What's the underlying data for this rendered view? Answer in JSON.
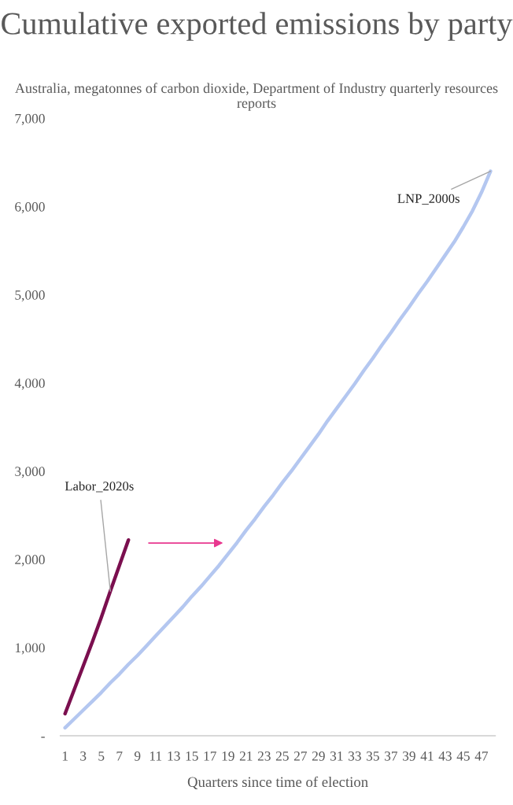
{
  "chart_data": {
    "type": "line",
    "title": "Cumulative exported emissions by party",
    "subtitle": "Australia, megatonnes of carbon dioxide, Department of Industry quarterly resources reports",
    "xlabel": "Quarters since time of election",
    "categories": [
      "1",
      null,
      "3",
      null,
      "5",
      null,
      "7",
      null,
      "9",
      null,
      "11",
      null,
      "13",
      null,
      "15",
      null,
      "17",
      null,
      "19",
      null,
      "21",
      null,
      "23",
      null,
      "25",
      null,
      "27",
      null,
      "29",
      null,
      "31",
      null,
      "33",
      null,
      "35",
      null,
      "37",
      null,
      "39",
      null,
      "41",
      null,
      "43",
      null,
      "45",
      null,
      "47",
      null
    ],
    "series": [
      {
        "name": "Labor_2020s",
        "color": "#7b0f4f",
        "values": [
          250,
          520,
          790,
          1060,
          1340,
          1640,
          1930,
          2220,
          null,
          null,
          null,
          null,
          null,
          null,
          null,
          null,
          null,
          null,
          null,
          null,
          null,
          null,
          null,
          null,
          null,
          null,
          null,
          null,
          null,
          null,
          null,
          null,
          null,
          null,
          null,
          null,
          null,
          null,
          null,
          null,
          null,
          null,
          null,
          null,
          null,
          null,
          null,
          null
        ]
      },
      {
        "name": "LNP_2000s",
        "color": "#b4c7f0",
        "values": [
          90,
          190,
          290,
          390,
          490,
          600,
          700,
          810,
          910,
          1020,
          1130,
          1240,
          1350,
          1460,
          1580,
          1690,
          1810,
          1930,
          2060,
          2190,
          2330,
          2460,
          2600,
          2730,
          2870,
          3000,
          3140,
          3280,
          3420,
          3570,
          3710,
          3850,
          3990,
          4140,
          4280,
          4430,
          4570,
          4720,
          4860,
          5010,
          5150,
          5300,
          5450,
          5600,
          5770,
          5950,
          6160,
          6400
        ]
      }
    ],
    "ylim": [
      0,
      7000
    ],
    "yticks": [
      {
        "value": 0,
        "label": "-"
      },
      {
        "value": 1000,
        "label": "1,000"
      },
      {
        "value": 2000,
        "label": "2,000"
      },
      {
        "value": 3000,
        "label": "3,000"
      },
      {
        "value": 4000,
        "label": "4,000"
      },
      {
        "value": 5000,
        "label": "5,000"
      },
      {
        "value": 6000,
        "label": "6,000"
      },
      {
        "value": 7000,
        "label": "7,000"
      }
    ],
    "grid": false,
    "legend": false,
    "marker": "none",
    "line_style": "solid"
  }
}
